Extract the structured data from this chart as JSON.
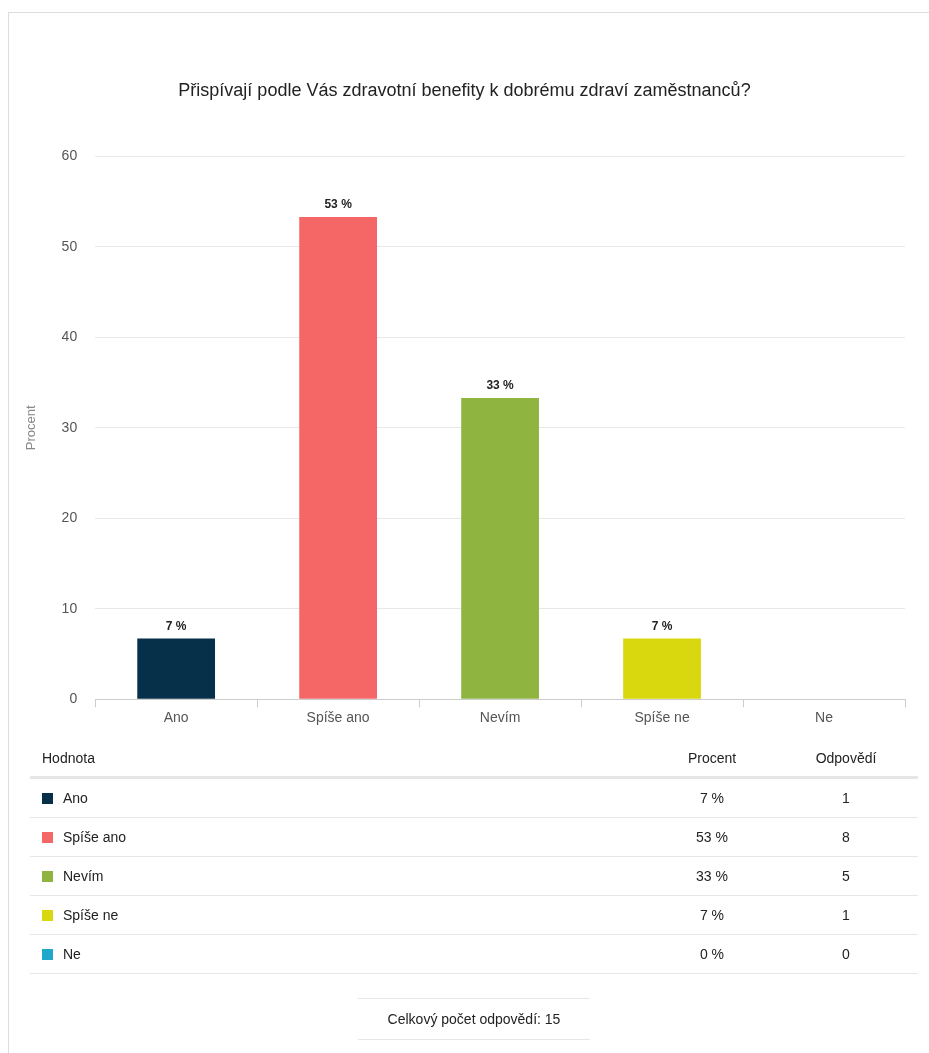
{
  "chart_data": [
    {
      "type": "bar",
      "title": "Přispívají podle Vás zdravotní benefity k dobrému zdraví zaměstnanců?",
      "ylabel": "Procent",
      "categories": [
        "Ano",
        "Spíše ano",
        "Nevím",
        "Spíše ne",
        "Ne"
      ],
      "values": [
        6.7,
        53.3,
        33.3,
        6.7,
        0
      ],
      "value_labels": [
        "7 %",
        "53 %",
        "33 %",
        "7 %",
        null
      ],
      "colors": [
        "#06304a",
        "#f56666",
        "#8fb43f",
        "#d9d70e",
        "#1fa8c9"
      ],
      "ylim": [
        0,
        60
      ],
      "yticks": [
        0,
        10,
        20,
        30,
        40,
        50,
        60
      ],
      "grid": "y"
    },
    {
      "type": "other",
      "legend_title": "Hodnota",
      "categories": [
        "Ano",
        "Spíše ano",
        "Nevím",
        "Spíše ne",
        "Ne"
      ],
      "colors": [
        "#06304a",
        "#f56666",
        "#8fb43f",
        "#d9d70e",
        "#1fa8c9"
      ],
      "series": [
        {
          "name": "Procent",
          "values": [
            7,
            53,
            33,
            7,
            0
          ],
          "value_labels": [
            "7 %",
            "53 %",
            "33 %",
            "7 %",
            "0 %"
          ]
        },
        {
          "name": "Odpovědí",
          "values": [
            1,
            8,
            5,
            1,
            0
          ],
          "value_labels": [
            "1",
            "8",
            "5",
            "1",
            "0"
          ]
        }
      ],
      "annotations": [
        "Celkový počet odpovědí: 15"
      ]
    }
  ]
}
